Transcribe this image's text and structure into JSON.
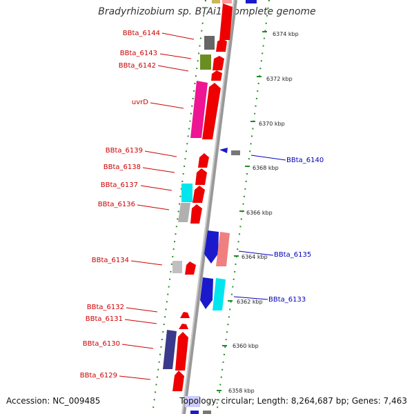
{
  "title": "Bradyrhizobium sp. BTAi1, complete genome",
  "footer": {
    "accession": "Accession: NC_009485",
    "stats": "Topology: circular; Length: 8,264,687 bp; Genes: 7,463"
  },
  "colors": {
    "reverse_label": "#cc0000",
    "forward_label": "#0000bb",
    "backbone": "#888888",
    "dots": "#228B22"
  },
  "ticks": [
    "6374 kbp",
    "6372 kbp",
    "6370 kbp",
    "6368 kbp",
    "6366 kbp",
    "6364 kbp",
    "6362 kbp",
    "6360 kbp",
    "6358 kbp"
  ],
  "reverse_labels": [
    "BBta_6144",
    "BBta_6143",
    "BBta_6142",
    "uvrD",
    "BBta_6139",
    "BBta_6138",
    "BBta_6137",
    "BBta_6136",
    "BBta_6134",
    "BBta_6132",
    "BBta_6131",
    "BBta_6130",
    "BBta_6129"
  ],
  "forward_labels": [
    "BBta_6140",
    "BBta_6135",
    "BBta_6133"
  ]
}
